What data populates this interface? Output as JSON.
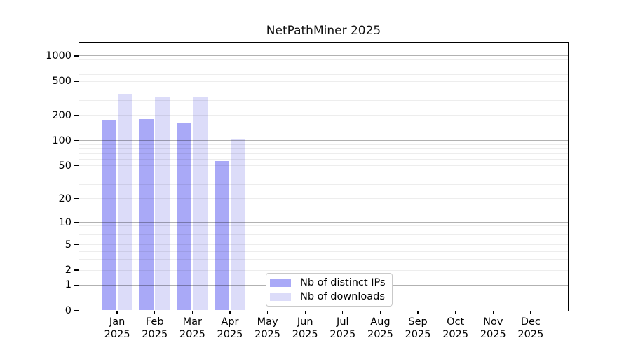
{
  "figure": {
    "background": "#ffffff"
  },
  "chart_data": {
    "type": "bar",
    "title": "NetPathMiner 2025",
    "categories": [
      "Jan 2025",
      "Feb 2025",
      "Mar 2025",
      "Apr 2025",
      "May 2025",
      "Jun 2025",
      "Jul 2025",
      "Aug 2025",
      "Sep 2025",
      "Oct 2025",
      "Nov 2025",
      "Dec 2025"
    ],
    "series": [
      {
        "name": "Nb of distinct IPs",
        "color": "#a9a9f7",
        "values": [
          172,
          180,
          159,
          56,
          null,
          null,
          null,
          null,
          null,
          null,
          null,
          null
        ]
      },
      {
        "name": "Nb of downloads",
        "color": "#dcdcf9",
        "values": [
          352,
          324,
          327,
          105,
          null,
          null,
          null,
          null,
          null,
          null,
          null,
          null
        ]
      }
    ],
    "y_ticks": [
      0,
      1,
      2,
      5,
      10,
      20,
      50,
      100,
      200,
      500,
      1000
    ],
    "y_scale": "log10(1+x)",
    "ylim": [
      0,
      1418
    ],
    "xlabel": "",
    "ylabel": "",
    "grid": true,
    "legend_position": "inside-bottom-center"
  }
}
